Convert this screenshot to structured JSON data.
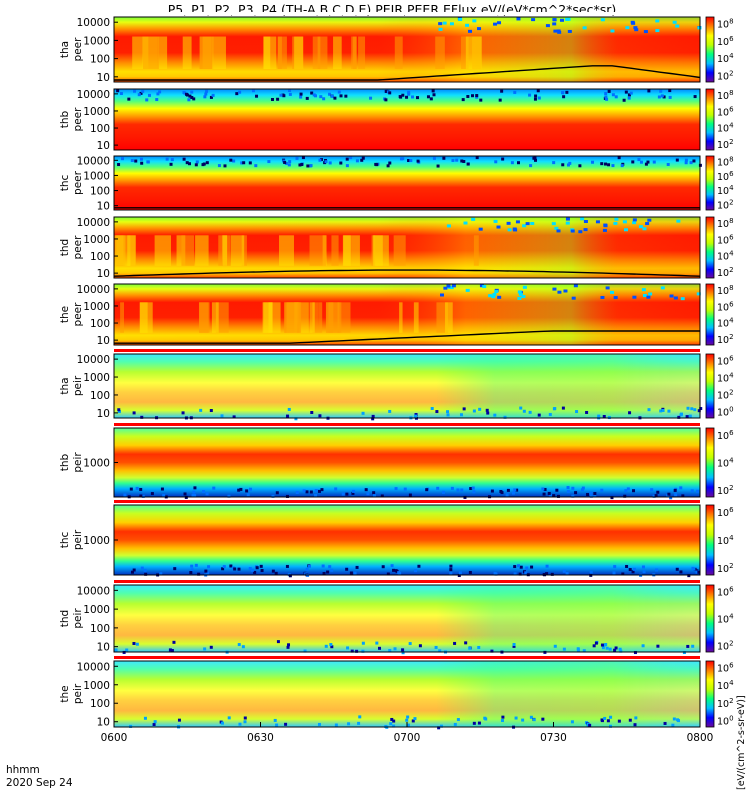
{
  "chart_data": {
    "type": "heatmap",
    "title": "P5, P1, P2, P3, P4 (TH-A,B,C,D,E) PEIR,PEER EFlux eV/(eV*cm^2*sec*sr)",
    "colorbar_label": "[eV/(cm^2-s-sr-eV)]",
    "x_ticks": [
      "0600",
      "0630",
      "0700",
      "0730",
      "0800"
    ],
    "x_range": [
      "06:00",
      "08:00"
    ],
    "x_corner_labels": [
      "hhmm",
      "2020 Sep 24"
    ],
    "colorscale": [
      "#6a0a9a",
      "#0000ff",
      "#00c0ff",
      "#00ff80",
      "#c0ff00",
      "#ffff00",
      "#ff8000",
      "#ff0000"
    ],
    "panels": [
      {
        "probe": "tha",
        "species": "peer",
        "y_ticks": [
          "10000",
          "1000",
          "100",
          "10"
        ],
        "cb_ticks": [
          "8",
          "6",
          "4",
          "2"
        ],
        "profile": "peer-active",
        "floor": "low-rising"
      },
      {
        "probe": "thb",
        "species": "peer",
        "y_ticks": [
          "10000",
          "1000",
          "100",
          "10"
        ],
        "cb_ticks": [
          "8",
          "6",
          "4",
          "2"
        ],
        "profile": "peer-quiet",
        "floor": "none"
      },
      {
        "probe": "thc",
        "species": "peer",
        "y_ticks": [
          "10000",
          "1000",
          "100",
          "10"
        ],
        "cb_ticks": [
          "8",
          "6",
          "4",
          "2"
        ],
        "profile": "peer-quiet",
        "floor": "flat"
      },
      {
        "probe": "thd",
        "species": "peer",
        "y_ticks": [
          "10000",
          "1000",
          "100",
          "10"
        ],
        "cb_ticks": [
          "8",
          "6",
          "4",
          "2"
        ],
        "profile": "peer-active",
        "floor": "bump"
      },
      {
        "probe": "the",
        "species": "peer",
        "y_ticks": [
          "10000",
          "1000",
          "100",
          "10"
        ],
        "cb_ticks": [
          "8",
          "6",
          "4",
          "2"
        ],
        "profile": "peer-active",
        "floor": "rising"
      },
      {
        "probe": "tha",
        "species": "peir",
        "y_ticks": [
          "10000",
          "1000",
          "100",
          "10"
        ],
        "cb_ticks": [
          "6",
          "4",
          "2",
          "0"
        ],
        "profile": "peir-broad",
        "floor": "none"
      },
      {
        "probe": "thb",
        "species": "peir",
        "y_ticks": [
          "1000"
        ],
        "cb_ticks": [
          "6",
          "4",
          "2"
        ],
        "profile": "peir-narrow",
        "floor": "none"
      },
      {
        "probe": "thc",
        "species": "peir",
        "y_ticks": [
          "1000"
        ],
        "cb_ticks": [
          "6",
          "4",
          "2"
        ],
        "profile": "peir-narrow",
        "floor": "none"
      },
      {
        "probe": "thd",
        "species": "peir",
        "y_ticks": [
          "10000",
          "1000",
          "100",
          "10"
        ],
        "cb_ticks": [
          "6",
          "4",
          "2"
        ],
        "profile": "peir-broad",
        "floor": "none"
      },
      {
        "probe": "the",
        "species": "peir",
        "y_ticks": [
          "10000",
          "1000",
          "100",
          "10"
        ],
        "cb_ticks": [
          "6",
          "4",
          "2",
          "0"
        ],
        "profile": "peir-broad",
        "floor": "none"
      }
    ]
  }
}
